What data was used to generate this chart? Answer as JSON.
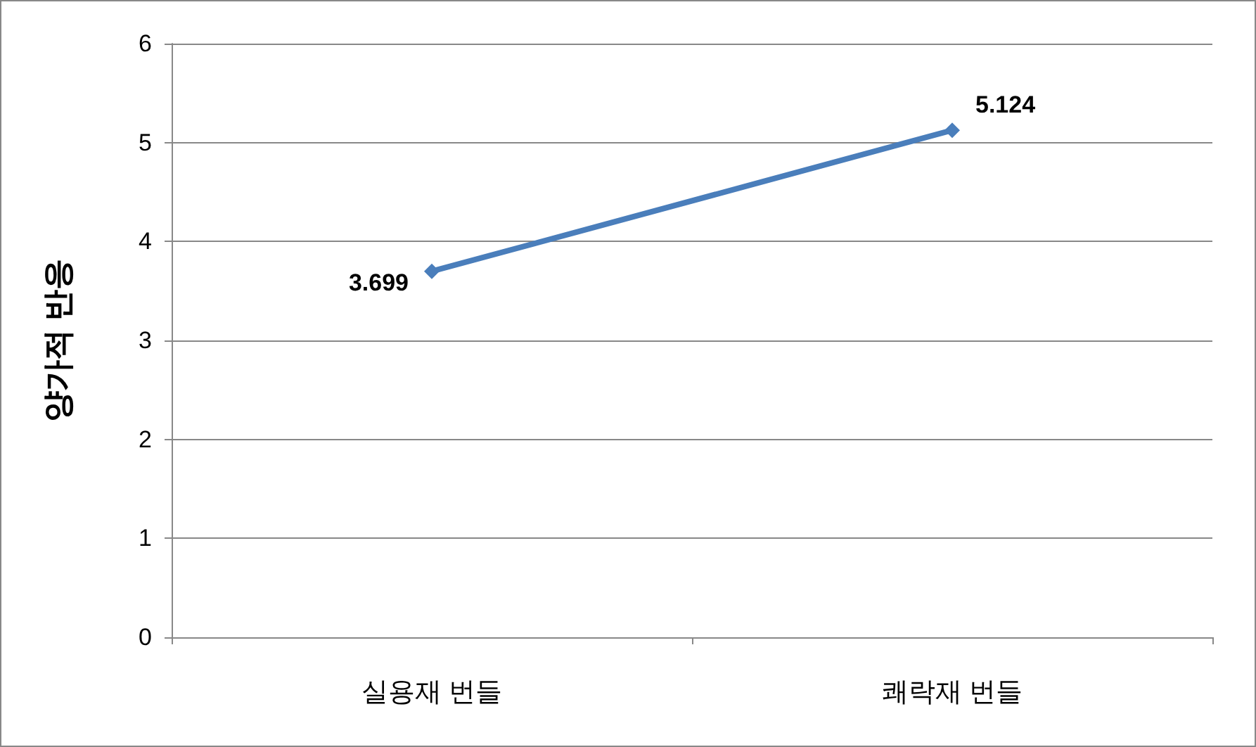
{
  "chart_data": {
    "type": "line",
    "ylabel": "양가적 반응",
    "categories": [
      "실용재 번들",
      "쾌락재 번들"
    ],
    "series": [
      {
        "color": "#4a7ebb",
        "values": [
          3.699,
          5.124
        ]
      }
    ],
    "ylim": [
      0,
      6
    ],
    "yticks": [
      0,
      1,
      2,
      3,
      4,
      5,
      6
    ],
    "grid": "y",
    "marker": "diamond",
    "line_style": "solid",
    "data_labels": true
  }
}
